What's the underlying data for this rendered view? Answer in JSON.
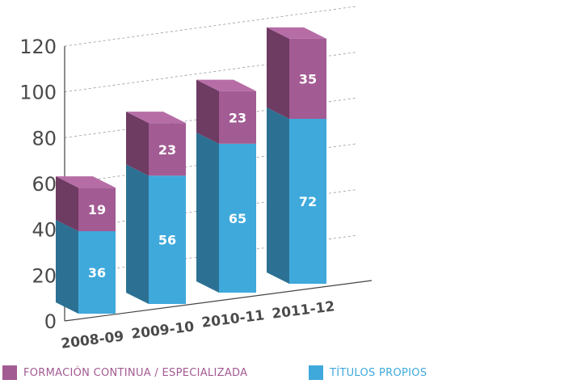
{
  "chart_data": {
    "type": "bar",
    "stacked": true,
    "categories": [
      "2008-09",
      "2009-10",
      "2010-11",
      "2011-12"
    ],
    "series": [
      {
        "name": "TÍTULOS PROPIOS",
        "values": [
          36,
          56,
          65,
          72
        ],
        "color": "#3FA9DC",
        "color_dark": "#2C7193"
      },
      {
        "name": "FORMACIÓN CONTINUA / ESPECIALIZADA",
        "values": [
          19,
          23,
          23,
          35
        ],
        "color": "#A35B93",
        "color_dark": "#6E3B62"
      }
    ],
    "ylim": [
      0,
      120
    ],
    "yticks": [
      "0",
      "20",
      "40",
      "60",
      "80",
      "100",
      "120"
    ],
    "grid": true,
    "legend": "bottom",
    "title": "",
    "xlabel": "",
    "ylabel": ""
  },
  "legend_colors": {
    "formacion": "#A35B93",
    "titulos": "#3FA9DC"
  },
  "legend_labels": {
    "formacion": "FORMACIÓN CONTINUA / ESPECIALIZADA",
    "titulos": "TÍTULOS PROPIOS"
  }
}
